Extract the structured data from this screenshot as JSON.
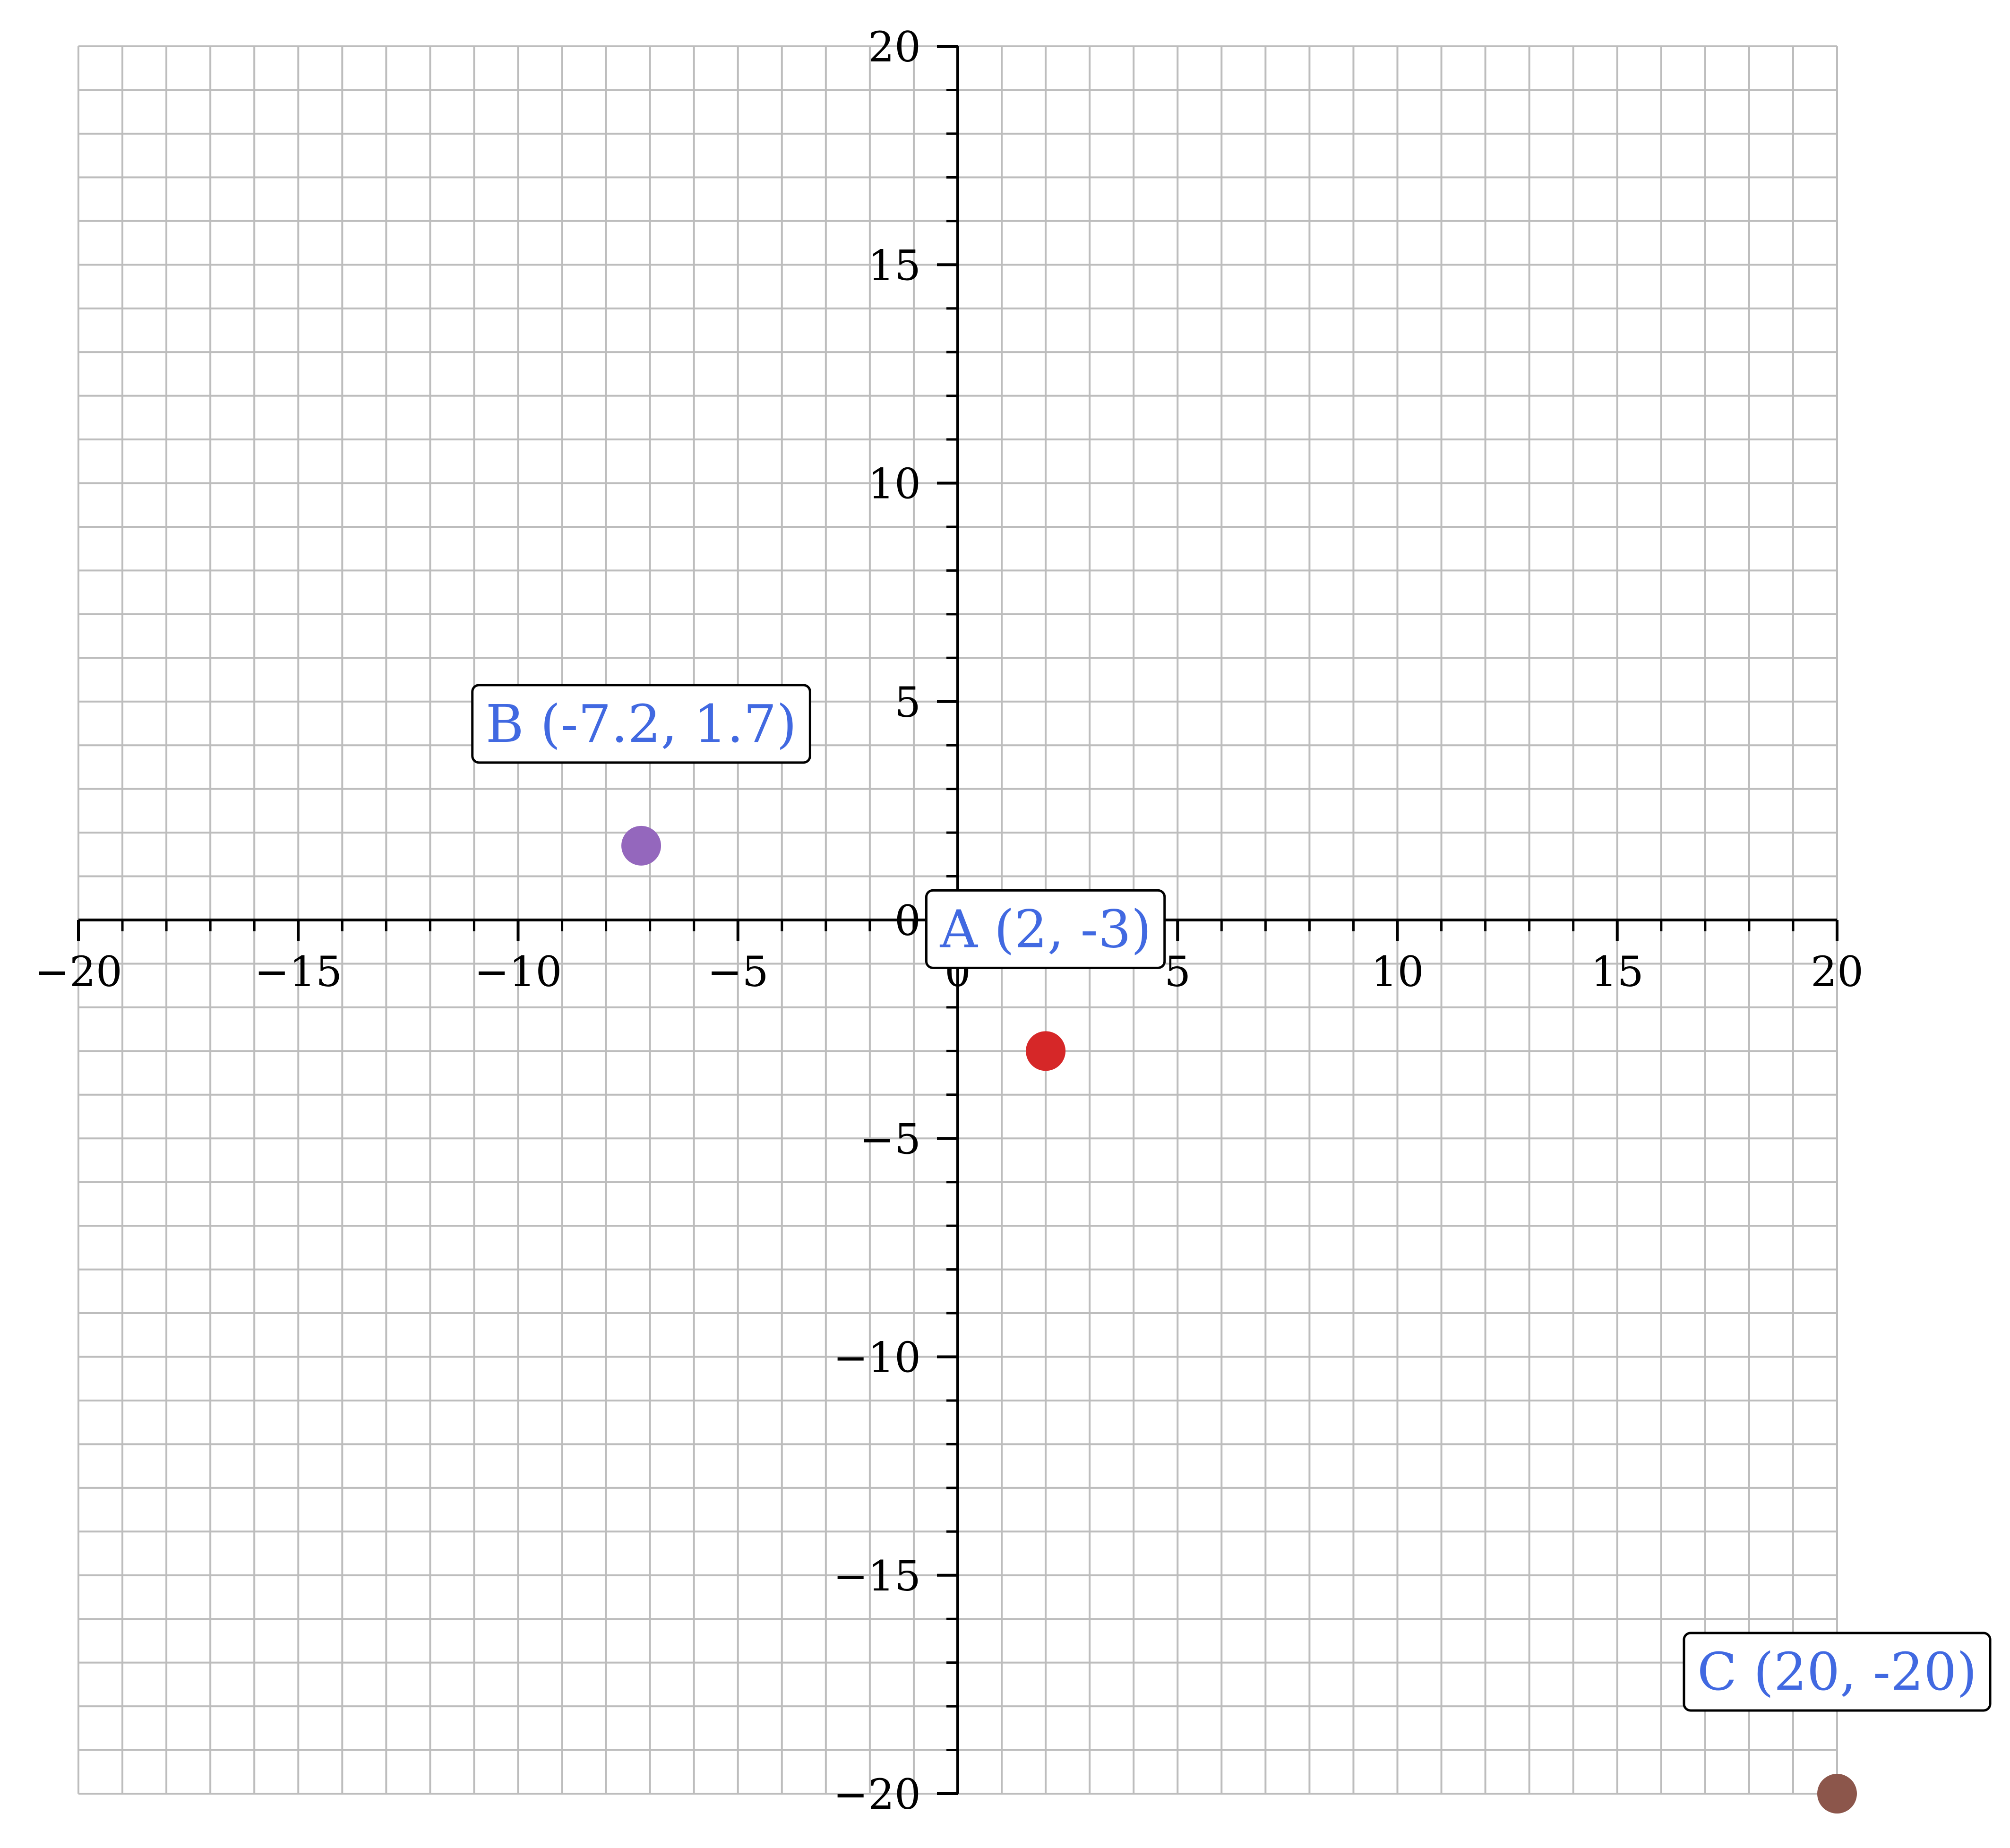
{
  "chart_data": {
    "type": "scatter",
    "title": "",
    "xlabel": "",
    "ylabel": "",
    "xlim": [
      -20,
      20
    ],
    "ylim": [
      -20,
      20
    ],
    "grid": true,
    "minor_step": 1,
    "major_step": 5,
    "x_ticks": [
      "−20",
      "−15",
      "−10",
      "−5",
      "0",
      "5",
      "10",
      "15",
      "20"
    ],
    "y_ticks": [
      "−20",
      "−15",
      "−10",
      "−5",
      "0",
      "5",
      "10",
      "15",
      "20"
    ],
    "points": [
      {
        "label": "A (2, -3)",
        "x": 2,
        "y": -3,
        "color": "#d62728"
      },
      {
        "label": "B (-7.2, 1.7)",
        "x": -7.2,
        "y": 1.7,
        "color": "#9467bd"
      },
      {
        "label": "C (20, -20)",
        "x": 20,
        "y": -20,
        "color": "#8c564b"
      }
    ],
    "label_color": "#4169e1",
    "grid_color": "#bdbdbd",
    "axis_color": "#000000"
  }
}
